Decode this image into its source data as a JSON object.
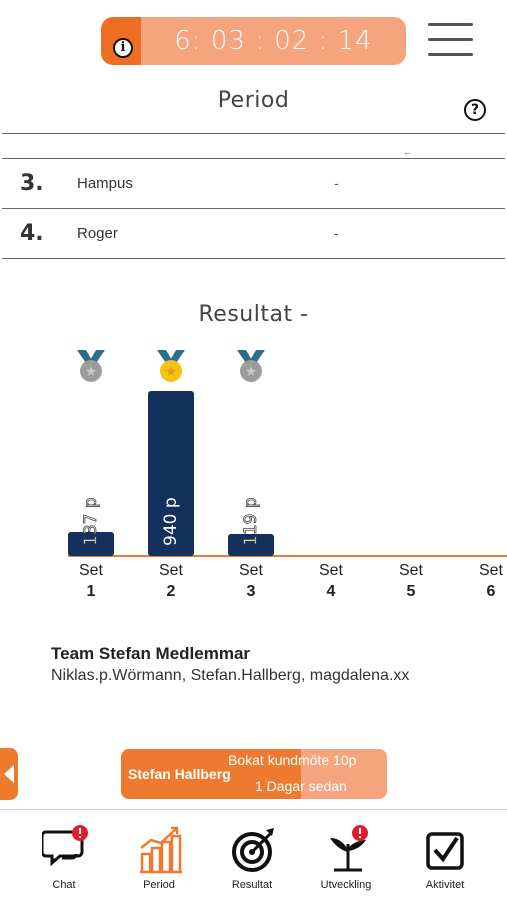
{
  "header": {
    "timer": "6: 03 : 02 : 14",
    "info_glyph": "i",
    "menu_icon": "hamburger-icon"
  },
  "period": {
    "title": "Period",
    "help_glyph": "?",
    "arrow_glyph": "←",
    "rows": [
      {
        "rank": "3.",
        "name": "Hampus",
        "value": "-"
      },
      {
        "rank": "4.",
        "name": "Roger",
        "value": "-"
      }
    ]
  },
  "result": {
    "title": "Resultat -"
  },
  "chart_data": {
    "type": "bar",
    "categories": [
      "Set 1",
      "Set 2",
      "Set 3",
      "Set 4",
      "Set 5",
      "Set 6"
    ],
    "tick_top": [
      "Set",
      "Set",
      "Set",
      "Set",
      "Set",
      "Set"
    ],
    "tick_bottom": [
      "1",
      "2",
      "3",
      "4",
      "5",
      "6"
    ],
    "values": [
      137,
      940,
      119,
      null,
      null,
      null
    ],
    "value_labels": [
      "137 p",
      "940 p",
      "119 p",
      "",
      "",
      ""
    ],
    "medals": [
      "silver",
      "gold",
      "silver",
      "",
      "",
      ""
    ],
    "bar_color": "#13315c",
    "baseline_color": "#ee7a2f"
  },
  "team": {
    "title": "Team Stefan  Medlemmar",
    "members": "Niklas.p.Wörmann, Stefan.Hallberg, magdalena.xx"
  },
  "activity": {
    "name": "Stefan Hallberg",
    "what": "Bokat kundmöte    10p",
    "when": "1 Dagar sedan"
  },
  "nav": [
    {
      "label": "Chat",
      "icon": "chat-icon"
    },
    {
      "label": "Period",
      "icon": "bar-chart-icon"
    },
    {
      "label": "Resultat",
      "icon": "target-icon"
    },
    {
      "label": "Utveckling",
      "icon": "sprout-icon"
    },
    {
      "label": "Aktivitet",
      "icon": "checkbox-icon"
    }
  ],
  "colors": {
    "accent": "#ee7a2f",
    "accent_light": "#f5a47d",
    "navy": "#13315c",
    "badge_red": "#e11d2a"
  }
}
